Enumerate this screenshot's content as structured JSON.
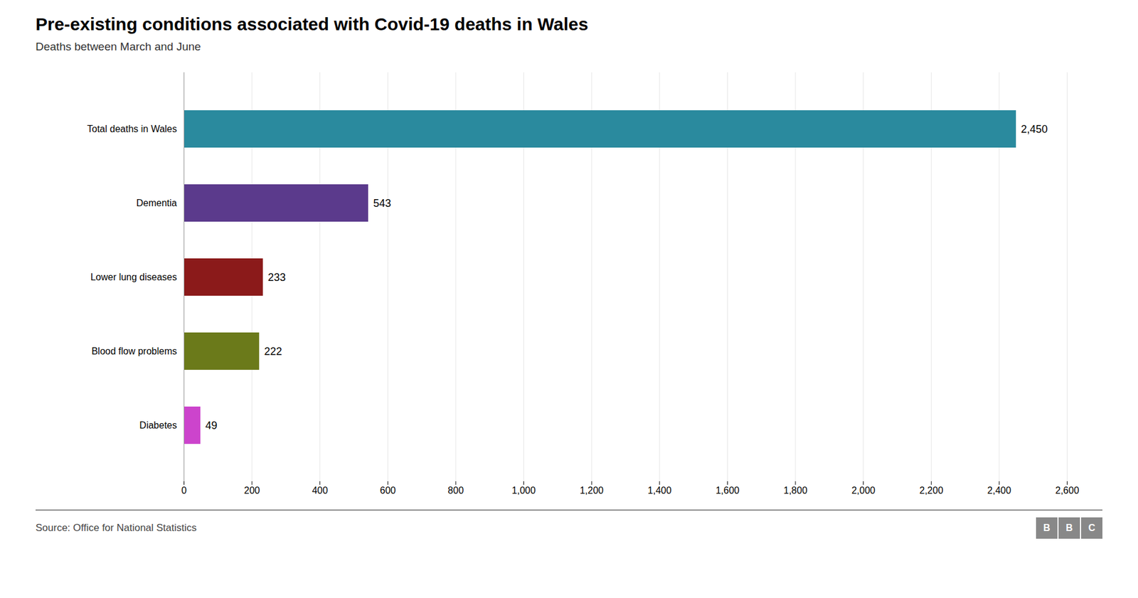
{
  "chart_data": {
    "type": "bar",
    "orientation": "horizontal",
    "title": "Pre-existing conditions associated with Covid-19 deaths in Wales",
    "subtitle": "Deaths between March and June",
    "source": "Source: Office for National Statistics",
    "logo": "BBC",
    "categories": [
      "Total deaths in Wales",
      "Dementia",
      "Lower lung diseases",
      "Blood flow problems",
      "Diabetes"
    ],
    "values": [
      2450,
      543,
      233,
      222,
      49
    ],
    "value_labels": [
      "2,450",
      "543",
      "233",
      "222",
      "49"
    ],
    "colors": [
      "#2a8a9e",
      "#5b3a8c",
      "#8b1a1a",
      "#6b7a1a",
      "#cc44cc"
    ],
    "xlim": [
      0,
      2600
    ],
    "xticks": [
      0,
      200,
      400,
      600,
      800,
      {
        "value": 1000,
        "label": "1,000"
      },
      {
        "value": 1200,
        "label": "1,200"
      },
      {
        "value": 1400,
        "label": "1,400"
      },
      {
        "value": 1600,
        "label": "1,600"
      },
      {
        "value": 1800,
        "label": "1,800"
      },
      {
        "value": 2000,
        "label": "2,000"
      },
      {
        "value": 2200,
        "label": "2,200"
      },
      {
        "value": 2400,
        "label": "2,400"
      },
      {
        "value": 2600,
        "label": "2,600"
      }
    ],
    "grid": true,
    "data_labels": true
  }
}
